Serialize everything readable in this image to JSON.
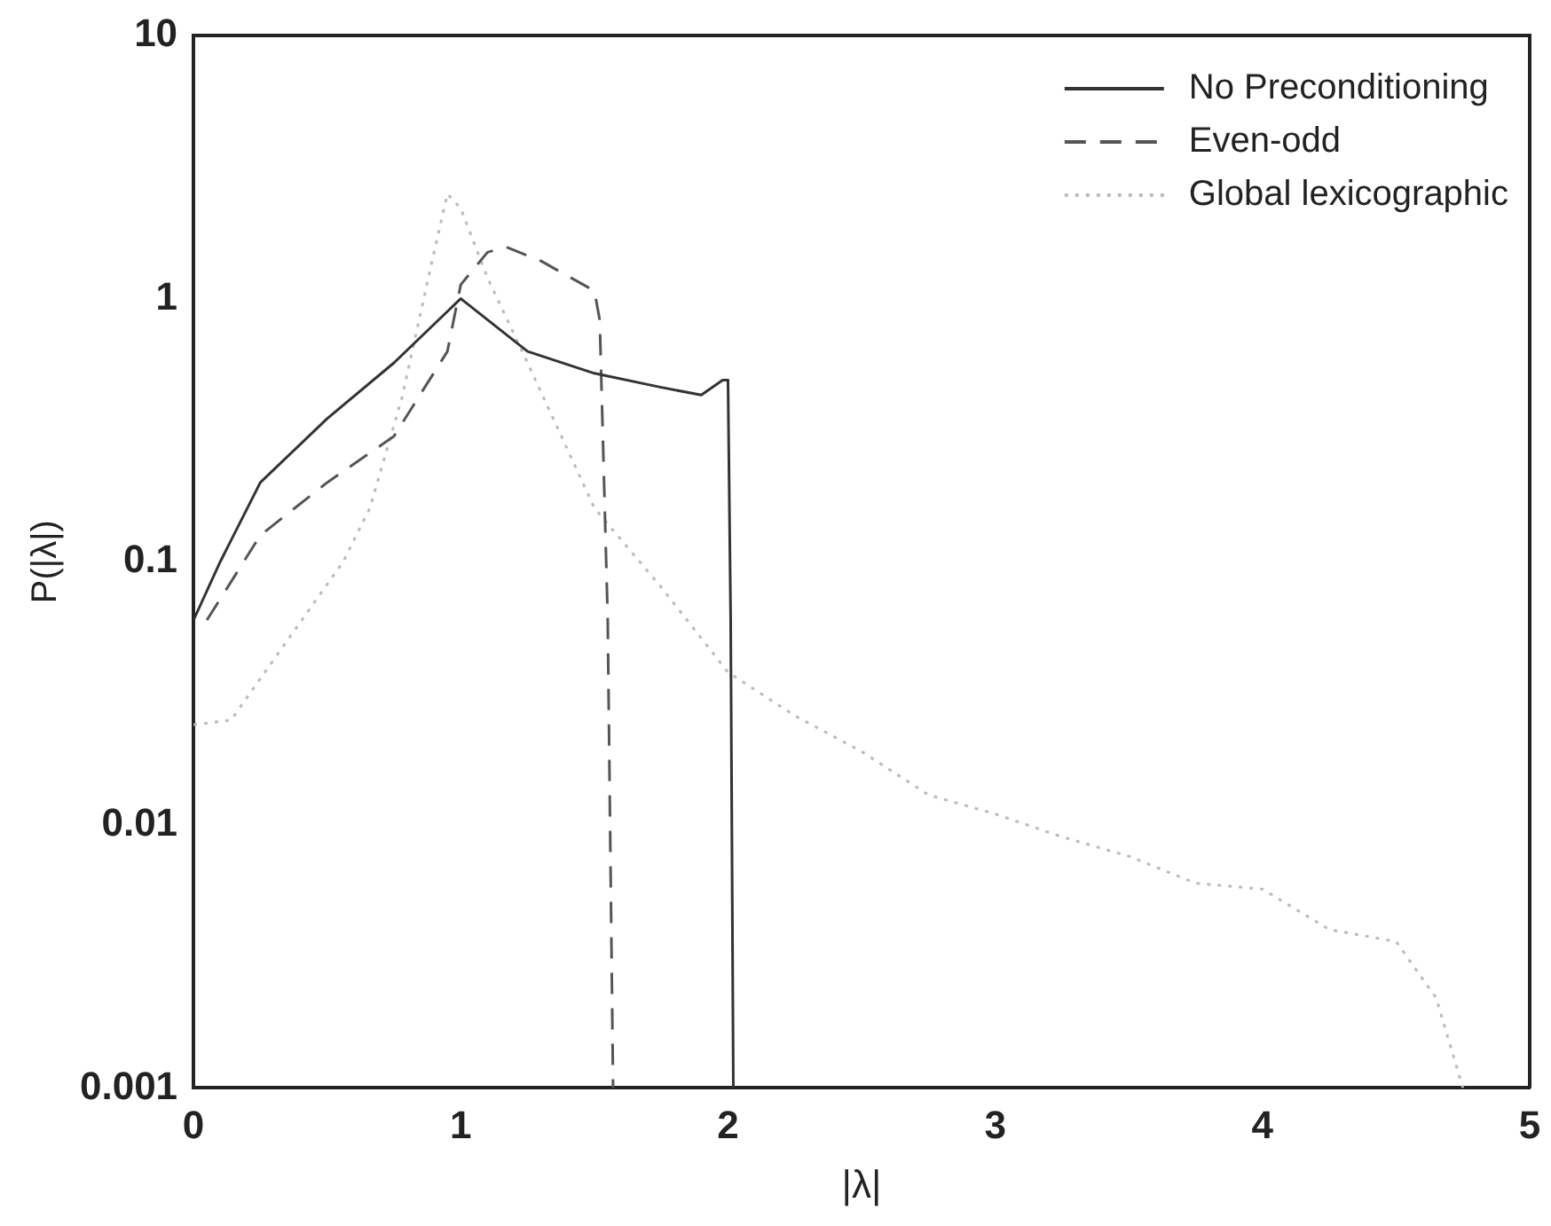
{
  "chart_data": {
    "type": "line",
    "xlabel": "|λ|",
    "ylabel": "P(|λ|)",
    "log": "y",
    "xlim": [
      0,
      5
    ],
    "xticks": [
      0,
      1,
      2,
      3,
      4,
      5
    ],
    "ylim": [
      0.001,
      10
    ],
    "yticks": [
      0.001,
      0.01,
      0.1,
      1,
      10
    ],
    "grid": false,
    "legend": "top right",
    "marker": "none",
    "series": [
      {
        "name": "No Preconditioning",
        "color": "#333333",
        "line_style": "solid",
        "x": [
          0,
          0.1,
          0.25,
          0.5,
          0.75,
          1,
          1.25,
          1.5,
          1.75,
          1.9,
          1.98,
          2,
          2.01,
          2.02
        ],
        "values": [
          0.06,
          0.1,
          0.2,
          0.35,
          0.57,
          1.0,
          0.63,
          0.52,
          0.46,
          0.43,
          0.49,
          0.49,
          0.06,
          0.001
        ]
      },
      {
        "name": "Even-odd",
        "color": "#555555",
        "line_style": "dashed",
        "x": [
          0.05,
          0.25,
          0.5,
          0.75,
          0.95,
          1.0,
          1.1,
          1.17,
          1.3,
          1.5,
          1.52,
          1.55,
          1.57
        ],
        "values": [
          0.06,
          0.126,
          0.2,
          0.3,
          0.63,
          1.13,
          1.5,
          1.57,
          1.39,
          1.07,
          0.83,
          0.06,
          0.001
        ]
      },
      {
        "name": "Global lexicographic",
        "color": "#bbbbbb",
        "line_style": "dotted",
        "x": [
          0,
          0.14,
          0.56,
          0.66,
          0.78,
          0.9,
          0.95,
          1.0,
          1.1,
          1.25,
          1.5,
          1.75,
          2.0,
          2.25,
          2.5,
          2.75,
          3.0,
          3.25,
          3.5,
          3.75,
          4.0,
          4.25,
          4.5,
          4.65,
          4.75
        ],
        "values": [
          0.024,
          0.025,
          0.1,
          0.16,
          0.42,
          1.5,
          2.5,
          2.2,
          1.2,
          0.57,
          0.16,
          0.08,
          0.038,
          0.026,
          0.019,
          0.013,
          0.011,
          0.009,
          0.0076,
          0.006,
          0.0057,
          0.004,
          0.0036,
          0.0022,
          0.001
        ]
      }
    ]
  }
}
